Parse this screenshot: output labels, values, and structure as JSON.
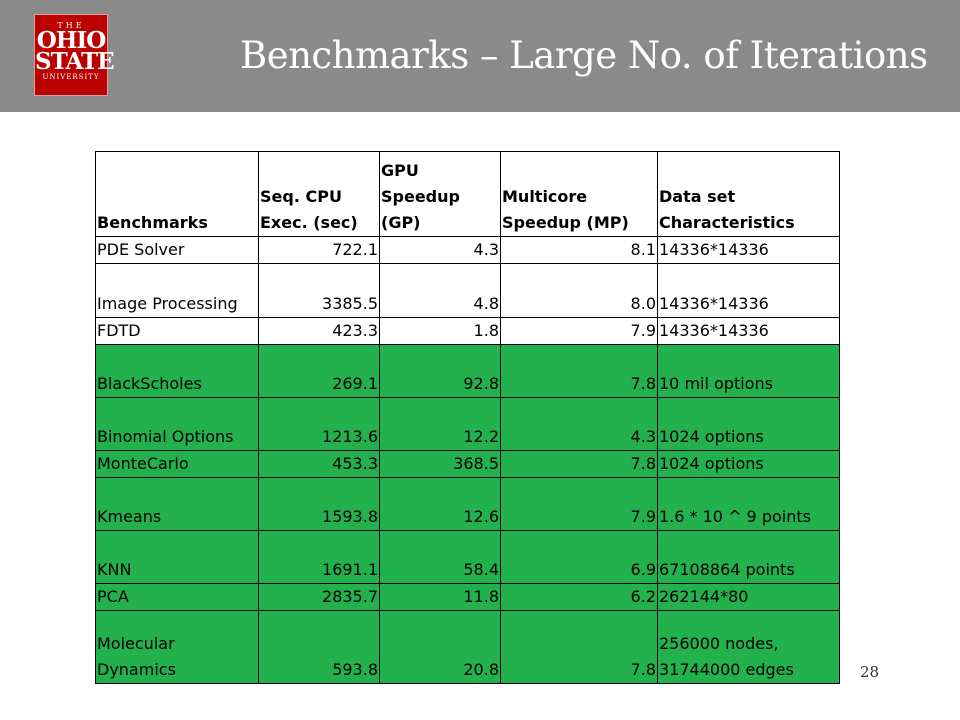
{
  "header": {
    "title": "Benchmarks – Large No. of Iterations",
    "logo": {
      "line1": "THE",
      "line2": "OHIO",
      "line3": "STATE",
      "line4": "UNIVERSITY"
    }
  },
  "table": {
    "columns": [
      "Benchmarks",
      "Seq. CPU Exec. (sec)",
      "GPU Speedup (GP)",
      "Multicore Speedup (MP)",
      "Data set Characteristics"
    ],
    "rows": [
      {
        "name": "PDE Solver",
        "seq": "722.1",
        "gp": "4.3",
        "mp": "8.1",
        "data": "14336*14336",
        "highlight": false
      },
      {
        "name": "Image Processing",
        "seq": "3385.5",
        "gp": "4.8",
        "mp": "8.0",
        "data": "14336*14336",
        "highlight": false
      },
      {
        "name": "FDTD",
        "seq": "423.3",
        "gp": "1.8",
        "mp": "7.9",
        "data": "14336*14336",
        "highlight": false
      },
      {
        "name": "BlackScholes",
        "seq": "269.1",
        "gp": "92.8",
        "mp": "7.8",
        "data": "10 mil options",
        "highlight": true
      },
      {
        "name": "Binomial Options",
        "seq": "1213.6",
        "gp": "12.2",
        "mp": "4.3",
        "data": "1024 options",
        "highlight": true
      },
      {
        "name": "MonteCarlo",
        "seq": "453.3",
        "gp": "368.5",
        "mp": "7.8",
        "data": "1024 options",
        "highlight": true
      },
      {
        "name": "Kmeans",
        "seq": "1593.8",
        "gp": "12.6",
        "mp": "7.9",
        "data": "1.6 * 10 ^ 9 points",
        "highlight": true
      },
      {
        "name": "KNN",
        "seq": "1691.1",
        "gp": "58.4",
        "mp": "6.9",
        "data": "67108864 points",
        "highlight": true
      },
      {
        "name": "PCA",
        "seq": "2835.7",
        "gp": "11.8",
        "mp": "6.2",
        "data": "262144*80",
        "highlight": true
      },
      {
        "name": "Molecular Dynamics",
        "seq": "593.8",
        "gp": "20.8",
        "mp": "7.8",
        "data": "256000 nodes, 31744000 edges",
        "highlight": true
      }
    ]
  },
  "footer": {
    "page_number": "28"
  },
  "colors": {
    "header_bg": "#8a8a8a",
    "logo_red": "#bb0000",
    "highlight_green": "#22b14c"
  }
}
